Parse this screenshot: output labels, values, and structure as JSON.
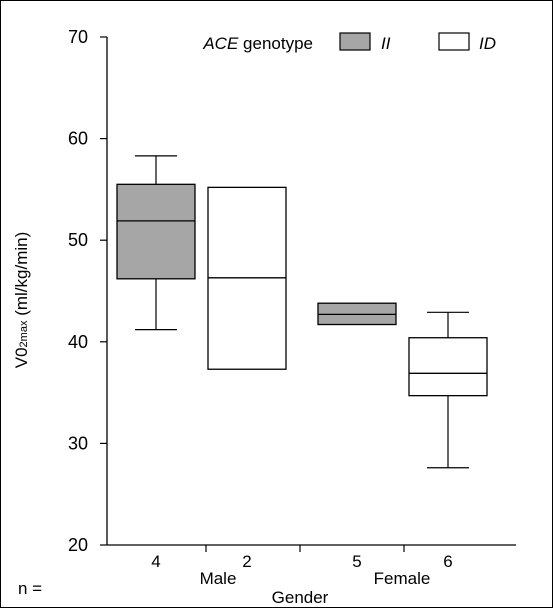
{
  "chart_data": {
    "type": "boxplot",
    "ylabel_main": "V0",
    "ylabel_sub": "2max",
    "ylabel_unit": " (ml/kg/min)",
    "xlabel": "Gender",
    "ylim": [
      20,
      70
    ],
    "yticks": [
      20,
      30,
      40,
      50,
      60,
      70
    ],
    "legend": {
      "title_italic": "ACE",
      "title_rest": " genotype",
      "placement": "top-right",
      "entries": [
        {
          "label": "II",
          "color": "#a6a6a6"
        },
        {
          "label": "ID",
          "color": "#ffffff"
        }
      ]
    },
    "n_label": "n =",
    "groups": [
      {
        "name": "Male",
        "n_values": [
          "4",
          "2"
        ]
      },
      {
        "name": "Female",
        "n_values": [
          "5",
          "6"
        ]
      }
    ],
    "series": [
      {
        "name": "II",
        "color": "#a6a6a6",
        "boxes": [
          {
            "group": "Male",
            "n": "4",
            "whisker_low": 41.2,
            "q1": 46.2,
            "median": 51.9,
            "q3": 55.5,
            "whisker_high": 58.3
          },
          {
            "group": "Female",
            "n": "5",
            "whisker_low": 41.7,
            "q1": 41.7,
            "median": 42.7,
            "q3": 43.8,
            "whisker_high": 43.8
          }
        ]
      },
      {
        "name": "ID",
        "color": "#ffffff",
        "boxes": [
          {
            "group": "Male",
            "n": "2",
            "whisker_low": 37.3,
            "q1": 37.3,
            "median": 46.3,
            "q3": 55.2,
            "whisker_high": 55.2
          },
          {
            "group": "Female",
            "n": "6",
            "whisker_low": 27.6,
            "q1": 34.7,
            "median": 36.9,
            "q3": 40.4,
            "whisker_high": 42.9
          }
        ]
      }
    ]
  }
}
